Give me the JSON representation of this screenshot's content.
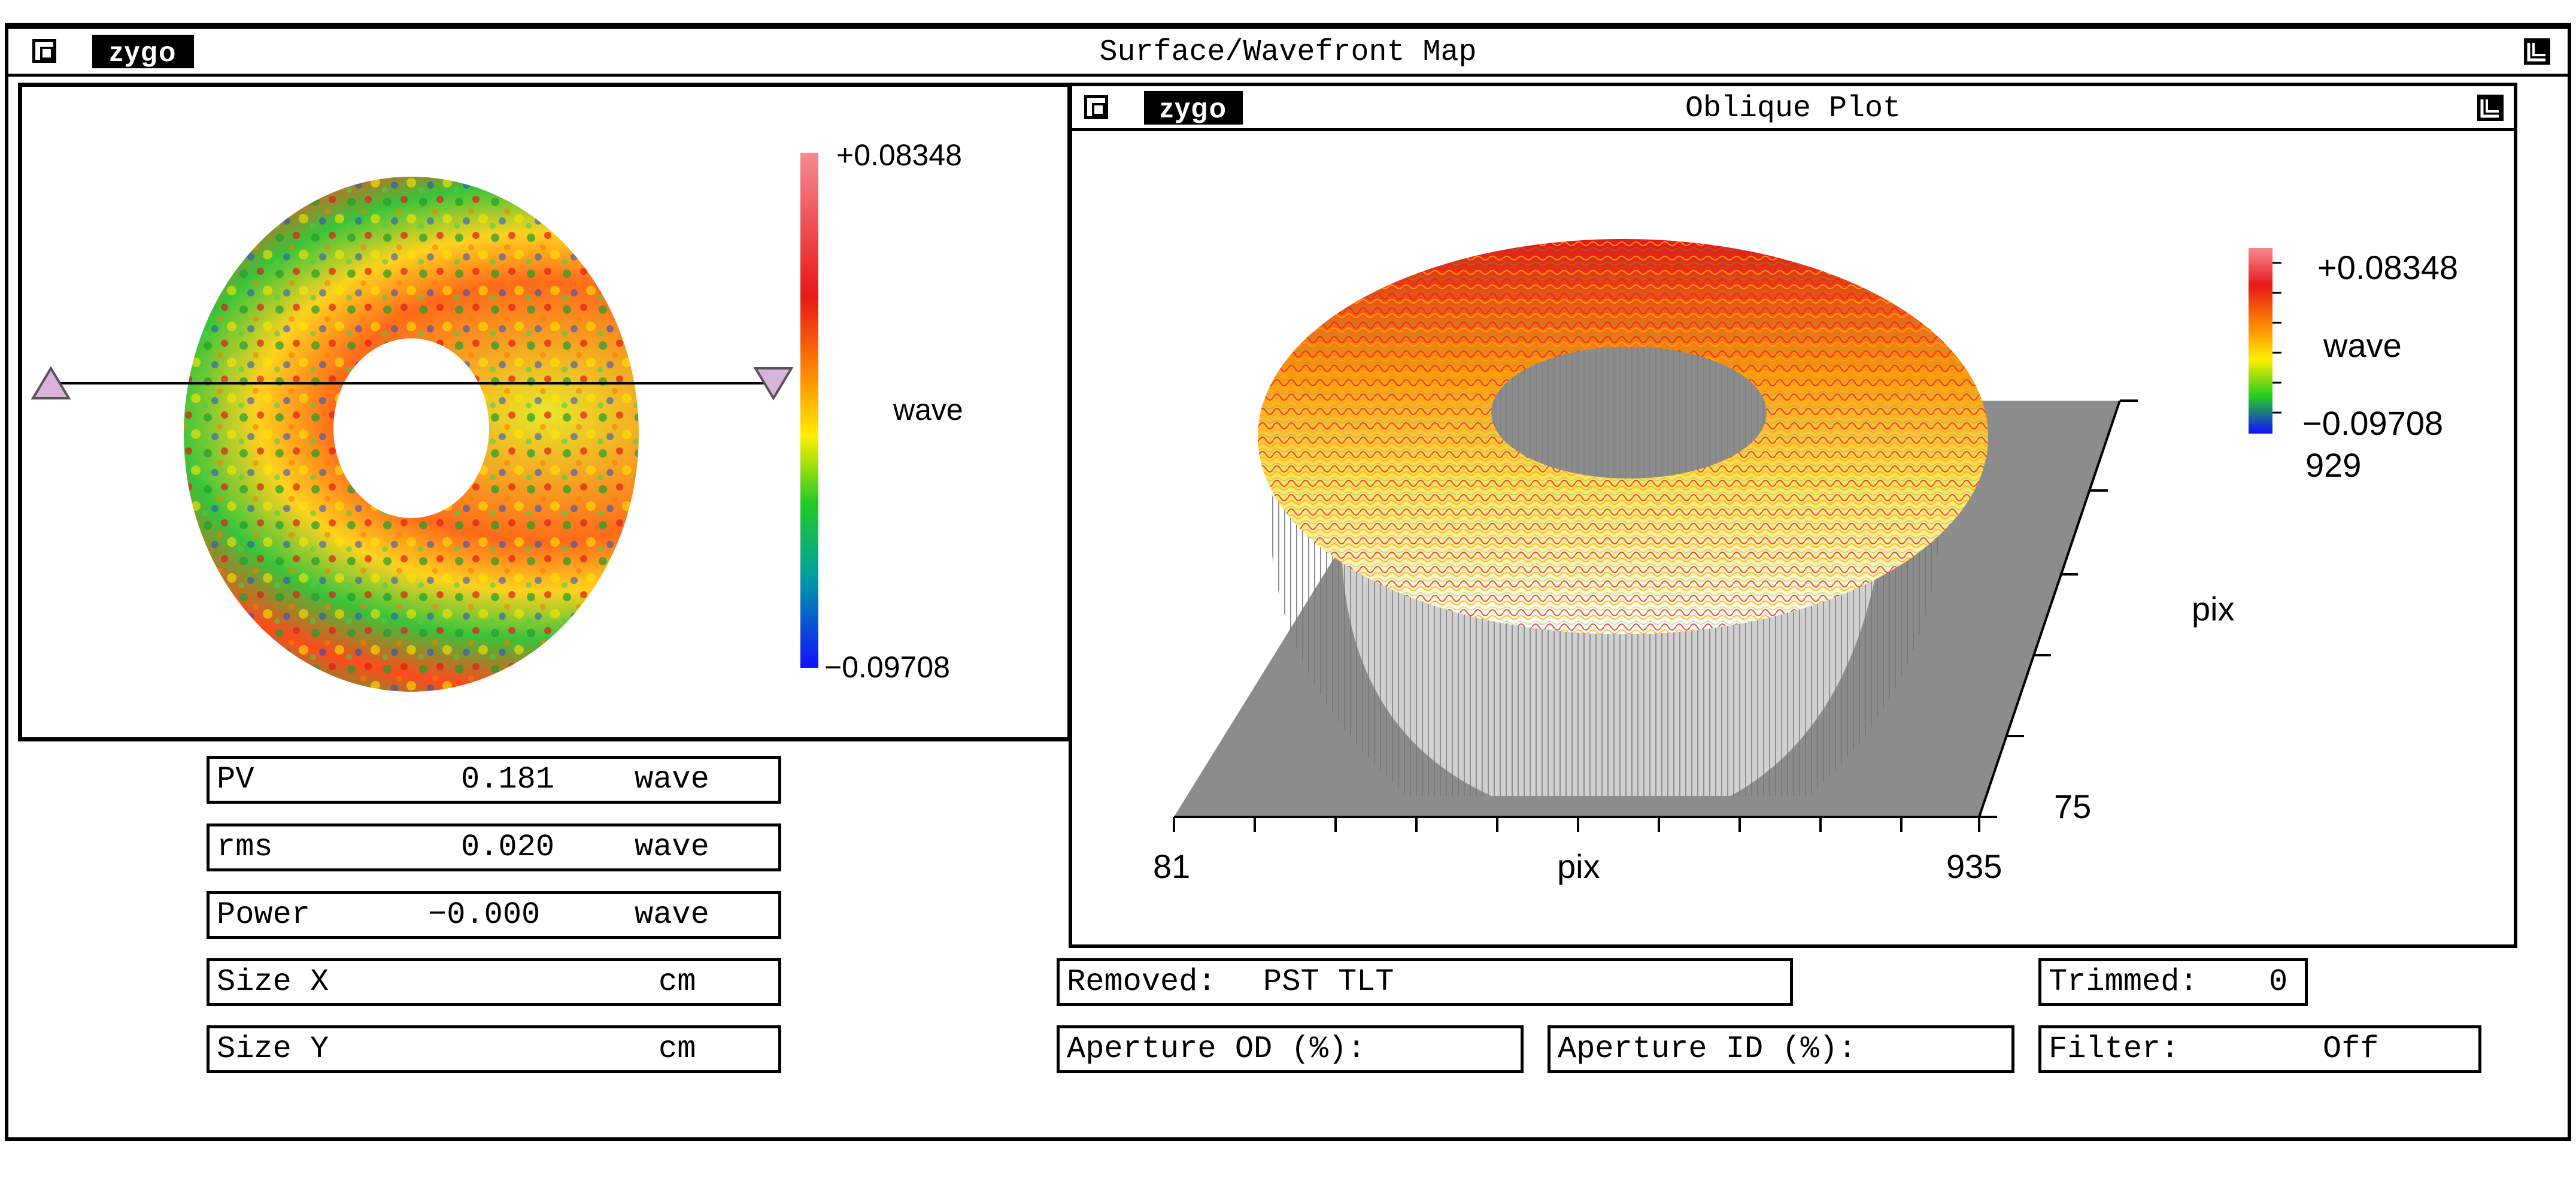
{
  "main_window": {
    "logo": "zygo",
    "title": "Surface/Wavefront Map"
  },
  "surface_map": {
    "colorbar_max": "+0.08348",
    "colorbar_min": "−0.09708",
    "unit": "wave"
  },
  "oblique_plot": {
    "logo": "zygo",
    "title": "Oblique Plot",
    "colorbar_max": "+0.08348",
    "colorbar_min": "−0.09708",
    "unit": "wave",
    "x_min": "81",
    "x_max": "935",
    "x_label": "pix",
    "y_min": "75",
    "y_max": "929",
    "y_label": "pix"
  },
  "stats": [
    {
      "label": "PV",
      "value": "0.181",
      "unit": "wave"
    },
    {
      "label": "rms",
      "value": "0.020",
      "unit": "wave"
    },
    {
      "label": "Power",
      "value": "−0.000",
      "unit": "wave"
    },
    {
      "label": "Size X",
      "value": "",
      "unit": "cm"
    },
    {
      "label": "Size Y",
      "value": "",
      "unit": "cm"
    }
  ],
  "info": {
    "removed_label": "Removed:",
    "removed_value": "PST TLT",
    "trimmed_label": "Trimmed:",
    "trimmed_value": "0",
    "aperture_od_label": "Aperture OD (%):",
    "aperture_id_label": "Aperture ID (%):",
    "filter_label": "Filter:",
    "filter_value": "Off"
  },
  "colors": {
    "frame": "#000000",
    "gray_base": "#8c8c8c",
    "marker": "#d9b3dc"
  },
  "icons": [
    "close-box-icon",
    "resize-corner-icon",
    "profile-marker-left-icon",
    "profile-marker-right-icon"
  ]
}
